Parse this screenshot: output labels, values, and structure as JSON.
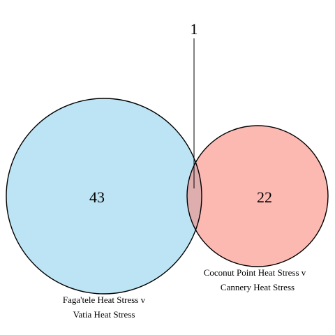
{
  "diagram": {
    "type": "venn",
    "sets": [
      {
        "label_line1": "Faga'tele Heat Stress v",
        "label_line2": "Vatia Heat Stress",
        "unique_count": "43",
        "fill_color": "#87ceeb",
        "stroke_color": "#000000"
      },
      {
        "label_line1": "Coconut Point Heat Stress v",
        "label_line2": "Cannery Heat Stress",
        "unique_count": "22",
        "fill_color": "#fa8072",
        "stroke_color": "#000000"
      }
    ],
    "overlap_count": "1"
  }
}
